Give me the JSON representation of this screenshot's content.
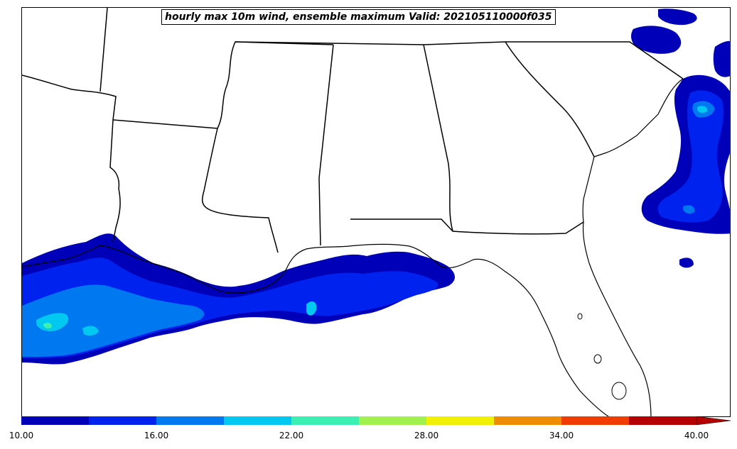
{
  "title": "hourly max 10m wind, ensemble maximum Valid: 202105110000f035",
  "colors": {
    "land": "#ffffff",
    "border": "#000000",
    "levels": [
      "#0000b8",
      "#0022ee",
      "#0078f0",
      "#00c8f0",
      "#3cf0b4",
      "#a0f050",
      "#f0f000",
      "#f08c00",
      "#f03c00",
      "#b40000"
    ]
  },
  "colorbar": {
    "min": 10,
    "max": 40,
    "extend": "max",
    "tick_labels": [
      "10.00",
      "16.00",
      "22.00",
      "28.00",
      "34.00",
      "40.00"
    ],
    "tick_values": [
      10,
      16,
      22,
      28,
      34,
      40
    ]
  }
}
